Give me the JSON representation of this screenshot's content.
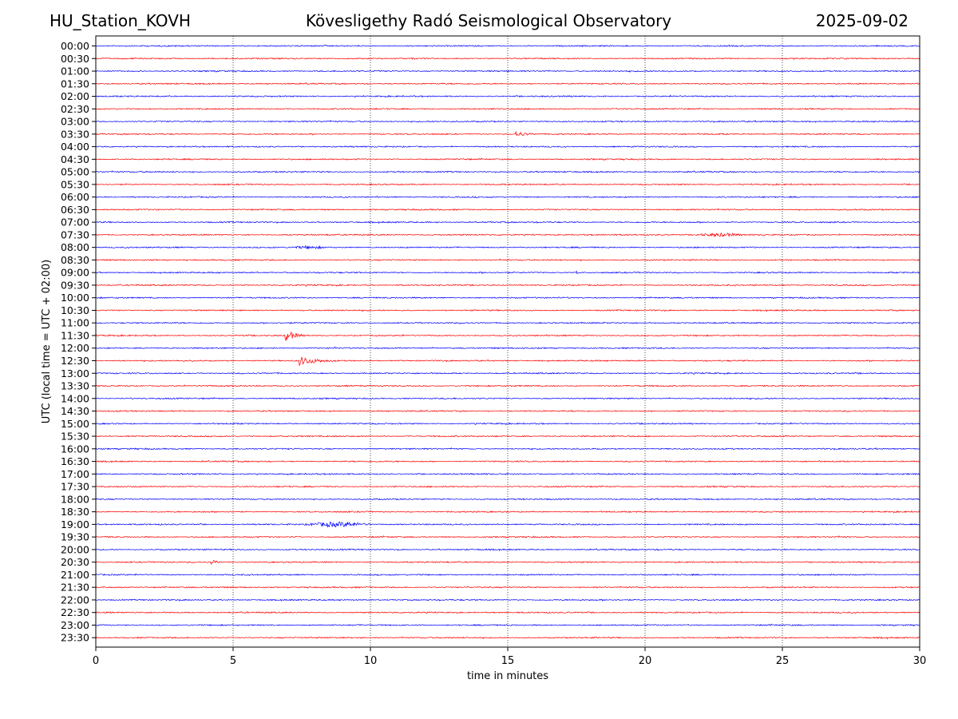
{
  "header": {
    "station": "HU_Station_KOVH",
    "title": "Kövesligethy Radó Seismological Observatory",
    "date": "2025-09-02"
  },
  "chart_data": {
    "type": "line",
    "subtype": "helicorder",
    "xlabel": "time in minutes",
    "ylabel": "UTC (local time = UTC + 02:00)",
    "xlim": [
      0,
      30
    ],
    "xticks": [
      0,
      5,
      10,
      15,
      20,
      25,
      30
    ],
    "grid": "vertical dotted at x ticks",
    "trace_colors": [
      "#0000ff",
      "#ff0000"
    ],
    "rows": [
      "00:00",
      "00:30",
      "01:00",
      "01:30",
      "02:00",
      "02:30",
      "03:00",
      "03:30",
      "04:00",
      "04:30",
      "05:00",
      "05:30",
      "06:00",
      "06:30",
      "07:00",
      "07:30",
      "08:00",
      "08:30",
      "09:00",
      "09:30",
      "10:00",
      "10:30",
      "11:00",
      "11:30",
      "12:00",
      "12:30",
      "13:00",
      "13:30",
      "14:00",
      "14:30",
      "15:00",
      "15:30",
      "16:00",
      "16:30",
      "17:00",
      "17:30",
      "18:00",
      "18:30",
      "19:00",
      "19:30",
      "20:00",
      "20:30",
      "21:00",
      "21:30",
      "22:00",
      "22:30",
      "23:00",
      "23:30"
    ],
    "events": [
      {
        "row": "03:30",
        "start_min": 15.3,
        "end_min": 17.0,
        "peak": 0.55,
        "decay": 0.9
      },
      {
        "row": "07:30",
        "start_min": 21.5,
        "end_min": 25.0,
        "peak": 0.35,
        "decay": 1.5,
        "emergent": true
      },
      {
        "row": "08:00",
        "start_min": 6.8,
        "end_min": 9.5,
        "peak": 0.3,
        "decay": 1.2,
        "emergent": true
      },
      {
        "row": "09:00",
        "start_min": 17.5,
        "end_min": 17.8,
        "peak": 0.45,
        "decay": 0.1
      },
      {
        "row": "11:30",
        "start_min": 6.9,
        "end_min": 9.5,
        "peak": 1.2,
        "decay": 0.7
      },
      {
        "row": "12:00",
        "start_min": 8.7,
        "end_min": 9.0,
        "peak": 0.35,
        "decay": 0.15
      },
      {
        "row": "12:30",
        "start_min": 7.4,
        "end_min": 11.5,
        "peak": 0.9,
        "decay": 1.4
      },
      {
        "row": "19:00",
        "start_min": 7.6,
        "end_min": 11.0,
        "peak": 0.5,
        "decay": 1.8,
        "emergent": true
      },
      {
        "row": "20:30",
        "start_min": 4.2,
        "end_min": 5.5,
        "peak": 0.5,
        "decay": 0.5
      }
    ]
  }
}
